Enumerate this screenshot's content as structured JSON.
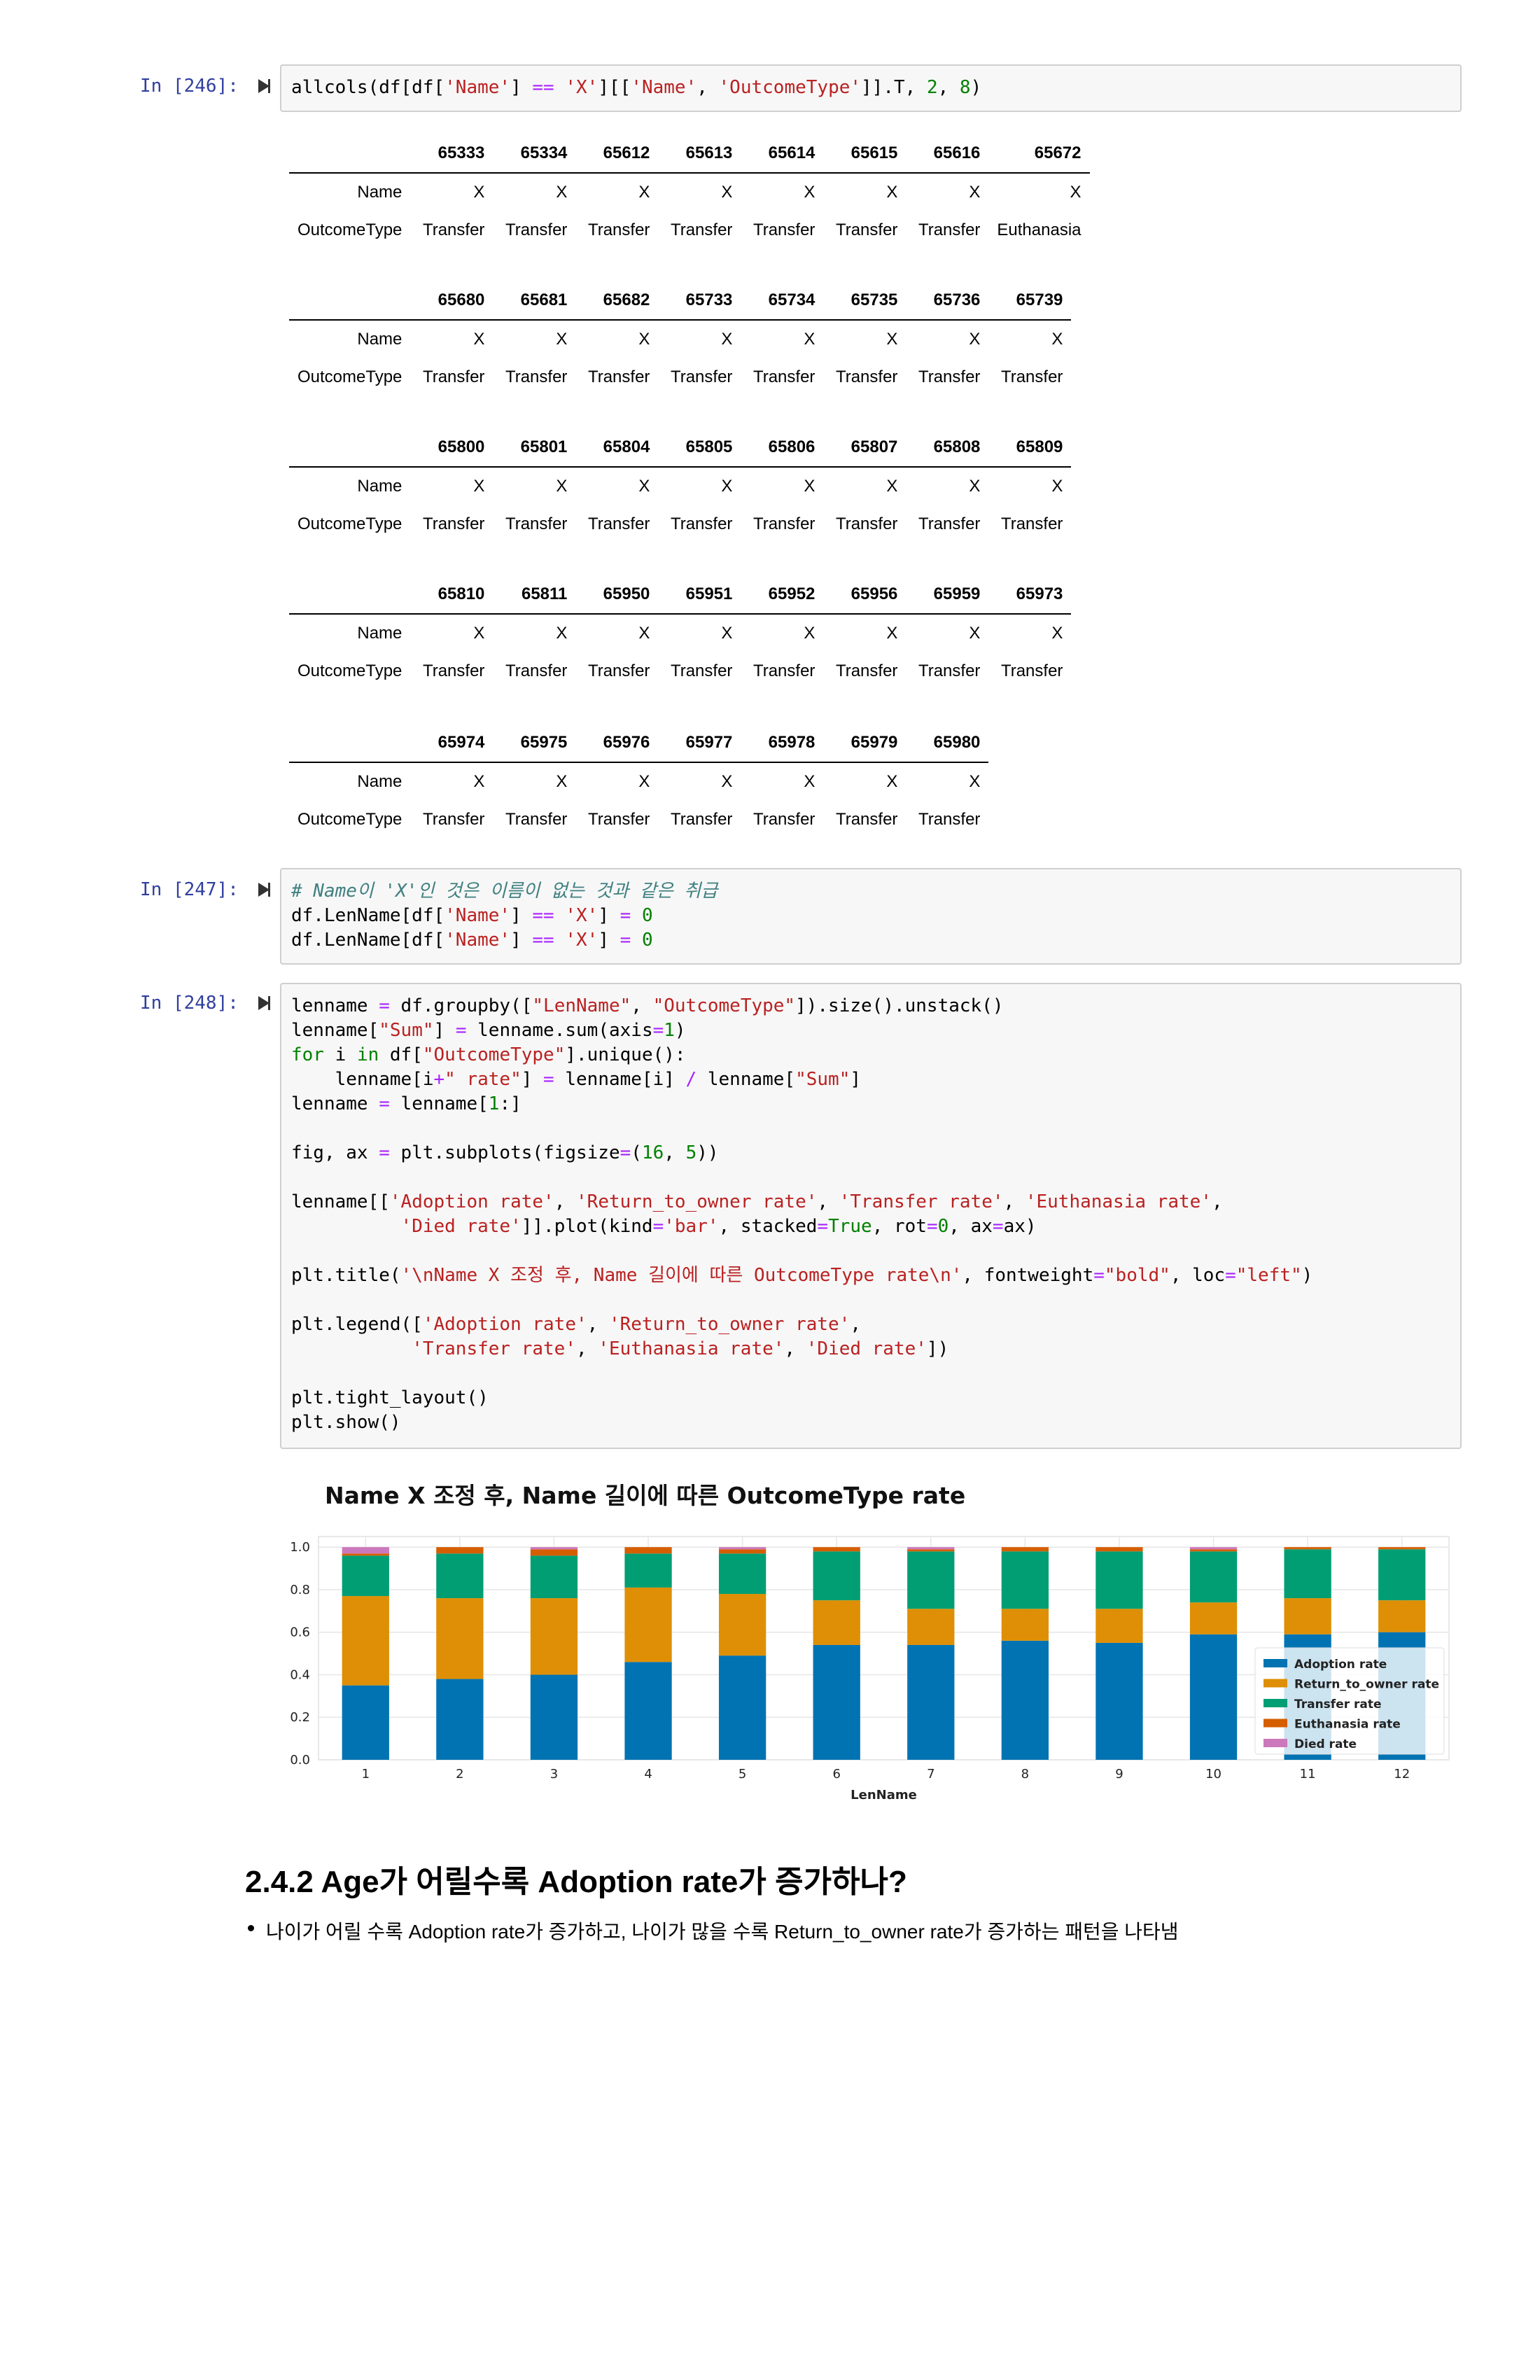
{
  "cells": {
    "c246": {
      "prompt": "In [246]:",
      "lines": [
        [
          [
            "",
            "allcols(df[df["
          ],
          [
            "str",
            "'Name'"
          ],
          [
            "",
            "] "
          ],
          [
            "op",
            "=="
          ],
          [
            "",
            " "
          ],
          [
            "str",
            "'X'"
          ],
          [
            "",
            "][["
          ],
          [
            "str",
            "'Name'"
          ],
          [
            "",
            ", "
          ],
          [
            "str",
            "'OutcomeType'"
          ],
          [
            "",
            "]].T, "
          ],
          [
            "num",
            "2"
          ],
          [
            "",
            ", "
          ],
          [
            "num",
            "8"
          ],
          [
            "",
            ")"
          ]
        ]
      ]
    },
    "c247": {
      "prompt": "In [247]:",
      "lines": [
        [
          [
            "com",
            "# Name이 'X'인 것은 이름이 없는 것과 같은 취급"
          ]
        ],
        [
          [
            "",
            "df.LenName[df["
          ],
          [
            "str",
            "'Name'"
          ],
          [
            "",
            "] "
          ],
          [
            "op",
            "=="
          ],
          [
            "",
            " "
          ],
          [
            "str",
            "'X'"
          ],
          [
            "",
            "] "
          ],
          [
            "op",
            "="
          ],
          [
            "",
            " "
          ],
          [
            "num",
            "0"
          ]
        ],
        [
          [
            "",
            "df.LenName[df["
          ],
          [
            "str",
            "'Name'"
          ],
          [
            "",
            "] "
          ],
          [
            "op",
            "=="
          ],
          [
            "",
            " "
          ],
          [
            "str",
            "'X'"
          ],
          [
            "",
            "] "
          ],
          [
            "op",
            "="
          ],
          [
            "",
            " "
          ],
          [
            "num",
            "0"
          ]
        ]
      ]
    },
    "c248": {
      "prompt": "In [248]:",
      "lines": [
        [
          [
            "",
            "lenname "
          ],
          [
            "op",
            "="
          ],
          [
            "",
            " df.groupby(["
          ],
          [
            "str",
            "\"LenName\""
          ],
          [
            "",
            ", "
          ],
          [
            "str",
            "\"OutcomeType\""
          ],
          [
            "",
            "]).size().unstack()"
          ]
        ],
        [
          [
            "",
            "lenname["
          ],
          [
            "str",
            "\"Sum\""
          ],
          [
            "",
            "] "
          ],
          [
            "op",
            "="
          ],
          [
            "",
            " lenname.sum(axis"
          ],
          [
            "op",
            "="
          ],
          [
            "num",
            "1"
          ],
          [
            "",
            ")"
          ]
        ],
        [
          [
            "kw",
            "for"
          ],
          [
            "",
            " i "
          ],
          [
            "kw",
            "in"
          ],
          [
            "",
            " df["
          ],
          [
            "str",
            "\"OutcomeType\""
          ],
          [
            "",
            "].unique():"
          ]
        ],
        [
          [
            "",
            "    lenname[i"
          ],
          [
            "op",
            "+"
          ],
          [
            "str",
            "\" rate\""
          ],
          [
            "",
            "] "
          ],
          [
            "op",
            "="
          ],
          [
            "",
            " lenname[i] "
          ],
          [
            "op",
            "/"
          ],
          [
            "",
            " lenname["
          ],
          [
            "str",
            "\"Sum\""
          ],
          [
            "",
            "]"
          ]
        ],
        [
          [
            "",
            "lenname "
          ],
          [
            "op",
            "="
          ],
          [
            "",
            " lenname["
          ],
          [
            "num",
            "1"
          ],
          [
            "",
            ":]"
          ]
        ],
        [
          [
            "",
            ""
          ]
        ],
        [
          [
            "",
            "fig, ax "
          ],
          [
            "op",
            "="
          ],
          [
            "",
            " plt.subplots(figsize"
          ],
          [
            "op",
            "="
          ],
          [
            "",
            "("
          ],
          [
            "num",
            "16"
          ],
          [
            "",
            ", "
          ],
          [
            "num",
            "5"
          ],
          [
            "",
            "))"
          ]
        ],
        [
          [
            "",
            ""
          ]
        ],
        [
          [
            "",
            "lenname[["
          ],
          [
            "str",
            "'Adoption rate'"
          ],
          [
            "",
            ", "
          ],
          [
            "str",
            "'Return_to_owner rate'"
          ],
          [
            "",
            ", "
          ],
          [
            "str",
            "'Transfer rate'"
          ],
          [
            "",
            ", "
          ],
          [
            "str",
            "'Euthanasia rate'"
          ],
          [
            "",
            ","
          ]
        ],
        [
          [
            "",
            "          "
          ],
          [
            "str",
            "'Died rate'"
          ],
          [
            "",
            "]].plot(kind"
          ],
          [
            "op",
            "="
          ],
          [
            "str",
            "'bar'"
          ],
          [
            "",
            ", stacked"
          ],
          [
            "op",
            "="
          ],
          [
            "kw",
            "True"
          ],
          [
            "",
            ", rot"
          ],
          [
            "op",
            "="
          ],
          [
            "num",
            "0"
          ],
          [
            "",
            ", ax"
          ],
          [
            "op",
            "="
          ],
          [
            "",
            "ax)"
          ]
        ],
        [
          [
            "",
            ""
          ]
        ],
        [
          [
            "",
            "plt.title("
          ],
          [
            "str",
            "'\\nName X 조정 후, Name 길이에 따른 OutcomeType rate\\n'"
          ],
          [
            "",
            ", fontweight"
          ],
          [
            "op",
            "="
          ],
          [
            "str",
            "\"bold\""
          ],
          [
            "",
            ", loc"
          ],
          [
            "op",
            "="
          ],
          [
            "str",
            "\"left\""
          ],
          [
            "",
            ")"
          ]
        ],
        [
          [
            "",
            ""
          ]
        ],
        [
          [
            "",
            "plt.legend(["
          ],
          [
            "str",
            "'Adoption rate'"
          ],
          [
            "",
            ", "
          ],
          [
            "str",
            "'Return_to_owner rate'"
          ],
          [
            "",
            ","
          ]
        ],
        [
          [
            "",
            "           "
          ],
          [
            "str",
            "'Transfer rate'"
          ],
          [
            "",
            ", "
          ],
          [
            "str",
            "'Euthanasia rate'"
          ],
          [
            "",
            ", "
          ],
          [
            "str",
            "'Died rate'"
          ],
          [
            "",
            "])"
          ]
        ],
        [
          [
            "",
            ""
          ]
        ],
        [
          [
            "",
            "plt.tight_layout()"
          ]
        ],
        [
          [
            "",
            "plt.show()"
          ]
        ]
      ]
    }
  },
  "dataframes": [
    {
      "ids": [
        "65333",
        "65334",
        "65612",
        "65613",
        "65614",
        "65615",
        "65616",
        "65672"
      ],
      "name": [
        "X",
        "X",
        "X",
        "X",
        "X",
        "X",
        "X",
        "X"
      ],
      "outcome": [
        "Transfer",
        "Transfer",
        "Transfer",
        "Transfer",
        "Transfer",
        "Transfer",
        "Transfer",
        "Euthanasia"
      ]
    },
    {
      "ids": [
        "65680",
        "65681",
        "65682",
        "65733",
        "65734",
        "65735",
        "65736",
        "65739"
      ],
      "name": [
        "X",
        "X",
        "X",
        "X",
        "X",
        "X",
        "X",
        "X"
      ],
      "outcome": [
        "Transfer",
        "Transfer",
        "Transfer",
        "Transfer",
        "Transfer",
        "Transfer",
        "Transfer",
        "Transfer"
      ]
    },
    {
      "ids": [
        "65800",
        "65801",
        "65804",
        "65805",
        "65806",
        "65807",
        "65808",
        "65809"
      ],
      "name": [
        "X",
        "X",
        "X",
        "X",
        "X",
        "X",
        "X",
        "X"
      ],
      "outcome": [
        "Transfer",
        "Transfer",
        "Transfer",
        "Transfer",
        "Transfer",
        "Transfer",
        "Transfer",
        "Transfer"
      ]
    },
    {
      "ids": [
        "65810",
        "65811",
        "65950",
        "65951",
        "65952",
        "65956",
        "65959",
        "65973"
      ],
      "name": [
        "X",
        "X",
        "X",
        "X",
        "X",
        "X",
        "X",
        "X"
      ],
      "outcome": [
        "Transfer",
        "Transfer",
        "Transfer",
        "Transfer",
        "Transfer",
        "Transfer",
        "Transfer",
        "Transfer"
      ]
    },
    {
      "ids": [
        "65974",
        "65975",
        "65976",
        "65977",
        "65978",
        "65979",
        "65980"
      ],
      "name": [
        "X",
        "X",
        "X",
        "X",
        "X",
        "X",
        "X"
      ],
      "outcome": [
        "Transfer",
        "Transfer",
        "Transfer",
        "Transfer",
        "Transfer",
        "Transfer",
        "Transfer"
      ]
    }
  ],
  "df_row_labels": {
    "name": "Name",
    "outcome": "OutcomeType"
  },
  "chart_data": {
    "type": "bar",
    "stacked": true,
    "title": "Name X 조정 후, Name 길이에 따른 OutcomeType rate",
    "xlabel": "LenName",
    "ylabel": "",
    "ylim": [
      0,
      1.05
    ],
    "yticks": [
      "0.0",
      "0.2",
      "0.4",
      "0.6",
      "0.8",
      "1.0"
    ],
    "grid": true,
    "legend_position": "lower-right",
    "categories": [
      "1",
      "2",
      "3",
      "4",
      "5",
      "6",
      "7",
      "8",
      "9",
      "10",
      "11",
      "12"
    ],
    "series": [
      {
        "name": "Adoption rate",
        "color": "#0173b2",
        "values": [
          0.35,
          0.38,
          0.4,
          0.46,
          0.49,
          0.54,
          0.54,
          0.56,
          0.55,
          0.59,
          0.59,
          0.6
        ]
      },
      {
        "name": "Return_to_owner rate",
        "color": "#de8f05",
        "values": [
          0.42,
          0.38,
          0.36,
          0.35,
          0.29,
          0.21,
          0.17,
          0.15,
          0.16,
          0.15,
          0.17,
          0.15
        ]
      },
      {
        "name": "Transfer rate",
        "color": "#029e73",
        "values": [
          0.19,
          0.21,
          0.2,
          0.16,
          0.19,
          0.23,
          0.27,
          0.27,
          0.27,
          0.24,
          0.23,
          0.24
        ]
      },
      {
        "name": "Euthanasia rate",
        "color": "#d55e00",
        "values": [
          0.01,
          0.03,
          0.03,
          0.03,
          0.02,
          0.02,
          0.01,
          0.02,
          0.02,
          0.01,
          0.01,
          0.01
        ]
      },
      {
        "name": "Died rate",
        "color": "#cc78bc",
        "values": [
          0.03,
          0.0,
          0.01,
          0.0,
          0.01,
          0.0,
          0.01,
          0.0,
          0.0,
          0.01,
          0.0,
          0.0
        ]
      }
    ]
  },
  "section": {
    "heading": "2.4.2 Age가 어릴수록 Adoption rate가 증가하나?",
    "bullet": "나이가 어릴 수록 Adoption rate가 증가하고, 나이가 많을 수록 Return_to_owner rate가 증가하는 패턴을 나타냄"
  }
}
